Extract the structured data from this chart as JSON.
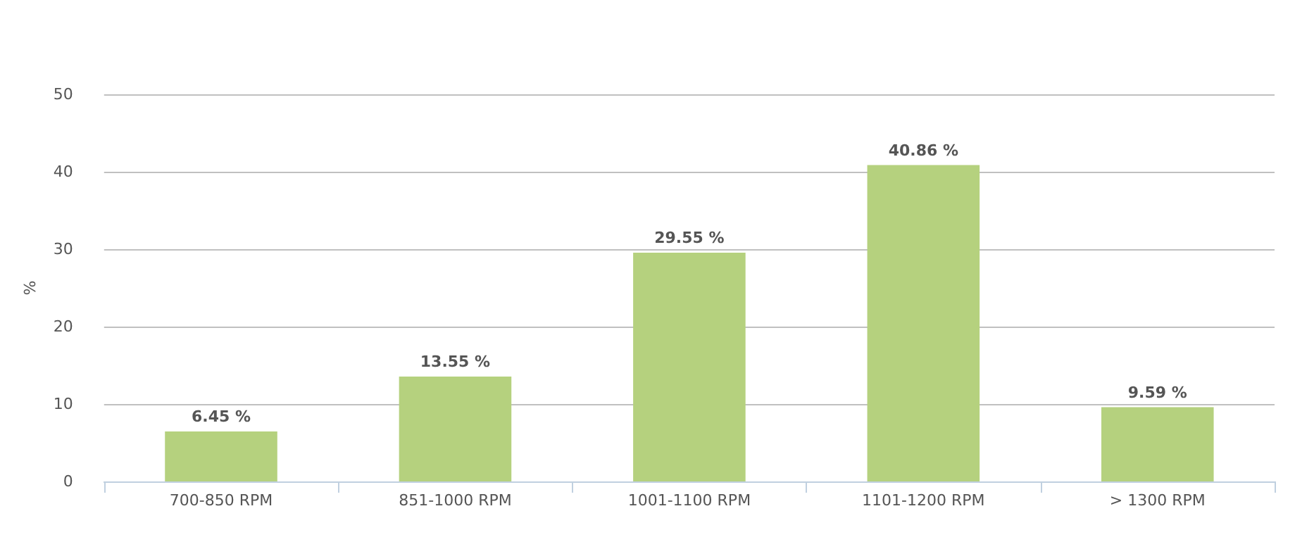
{
  "chart_data": {
    "type": "bar",
    "ylabel": "%",
    "categories": [
      "700-850 RPM",
      "851-1000 RPM",
      "1001-1100 RPM",
      "1101-1200 RPM",
      "> 1300 RPM"
    ],
    "values": [
      6.45,
      13.55,
      29.55,
      40.86,
      9.59
    ],
    "value_labels": [
      "6.45 %",
      "13.55 %",
      "29.55 %",
      "40.86 %",
      "9.59 %"
    ],
    "color": "#b5d17e",
    "ylim": [
      0,
      50
    ],
    "yticks": [
      0,
      10,
      20,
      30,
      40,
      50
    ],
    "grid": "y"
  }
}
